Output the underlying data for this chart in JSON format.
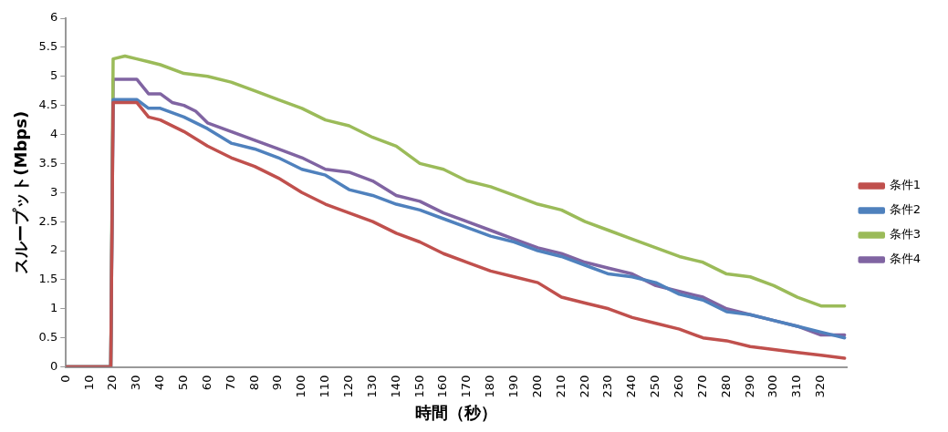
{
  "chart_data": {
    "type": "line",
    "xlabel": "時間（秒）",
    "ylabel": "スループット(Mbps)",
    "xlim": [
      0,
      331
    ],
    "xticks": [
      0,
      10,
      20,
      30,
      40,
      50,
      60,
      70,
      80,
      90,
      100,
      110,
      120,
      130,
      140,
      150,
      160,
      170,
      180,
      190,
      200,
      210,
      220,
      230,
      240,
      250,
      260,
      270,
      280,
      290,
      300,
      310,
      320
    ],
    "ylim": [
      0,
      6
    ],
    "yticks": [
      0,
      0.5,
      1,
      1.5,
      2,
      2.5,
      3,
      3.5,
      4,
      4.5,
      5,
      5.5,
      6
    ],
    "grid": false,
    "legend": "right",
    "marker": "none",
    "line_style": "solid",
    "series": [
      {
        "name": "条件4",
        "color": "#8064a2",
        "x": [
          0,
          19,
          20,
          30,
          35,
          40,
          45,
          50,
          55,
          60,
          70,
          80,
          90,
          100,
          110,
          120,
          130,
          140,
          150,
          160,
          170,
          180,
          190,
          200,
          210,
          220,
          230,
          240,
          250,
          260,
          270,
          280,
          290,
          300,
          310,
          320,
          330
        ],
        "values": [
          0,
          0,
          4.95,
          4.95,
          4.7,
          4.7,
          4.55,
          4.5,
          4.4,
          4.2,
          4.05,
          3.9,
          3.75,
          3.6,
          3.4,
          3.35,
          3.2,
          2.95,
          2.85,
          2.65,
          2.5,
          2.35,
          2.2,
          2.05,
          1.95,
          1.8,
          1.7,
          1.6,
          1.4,
          1.3,
          1.2,
          1.0,
          0.9,
          0.8,
          0.7,
          0.55,
          0.55
        ]
      },
      {
        "name": "条件3",
        "color": "#9bbb59",
        "x": [
          0,
          19,
          20,
          25,
          30,
          35,
          40,
          50,
          60,
          70,
          80,
          90,
          100,
          110,
          120,
          130,
          140,
          150,
          160,
          170,
          180,
          190,
          200,
          210,
          220,
          230,
          240,
          250,
          260,
          270,
          280,
          290,
          300,
          310,
          320,
          330
        ],
        "values": [
          0,
          0,
          5.3,
          5.35,
          5.3,
          5.25,
          5.2,
          5.05,
          5.0,
          4.9,
          4.75,
          4.6,
          4.45,
          4.25,
          4.15,
          3.95,
          3.8,
          3.5,
          3.4,
          3.2,
          3.1,
          2.95,
          2.8,
          2.7,
          2.5,
          2.35,
          2.2,
          2.05,
          1.9,
          1.8,
          1.6,
          1.55,
          1.4,
          1.2,
          1.05,
          1.05
        ]
      },
      {
        "name": "条件2",
        "color": "#4f81bd",
        "x": [
          0,
          19,
          20,
          30,
          35,
          40,
          50,
          60,
          70,
          80,
          90,
          100,
          110,
          120,
          130,
          140,
          150,
          160,
          170,
          180,
          190,
          200,
          210,
          220,
          230,
          240,
          250,
          260,
          270,
          280,
          290,
          300,
          310,
          320,
          330
        ],
        "values": [
          0,
          0,
          4.6,
          4.6,
          4.45,
          4.45,
          4.3,
          4.1,
          3.85,
          3.75,
          3.6,
          3.4,
          3.3,
          3.05,
          2.95,
          2.8,
          2.7,
          2.55,
          2.4,
          2.25,
          2.15,
          2.0,
          1.9,
          1.75,
          1.6,
          1.55,
          1.45,
          1.25,
          1.15,
          0.95,
          0.9,
          0.8,
          0.7,
          0.6,
          0.5
        ]
      },
      {
        "name": "条件1",
        "color": "#c0504d",
        "x": [
          0,
          19,
          20,
          30,
          35,
          40,
          50,
          60,
          70,
          80,
          90,
          100,
          110,
          120,
          130,
          140,
          150,
          160,
          170,
          180,
          190,
          200,
          210,
          220,
          230,
          240,
          250,
          260,
          270,
          280,
          290,
          300,
          310,
          320,
          330
        ],
        "values": [
          0,
          0,
          4.55,
          4.55,
          4.3,
          4.25,
          4.05,
          3.8,
          3.6,
          3.45,
          3.25,
          3.0,
          2.8,
          2.65,
          2.5,
          2.3,
          2.15,
          1.95,
          1.8,
          1.65,
          1.55,
          1.45,
          1.2,
          1.1,
          1.0,
          0.85,
          0.75,
          0.65,
          0.5,
          0.45,
          0.35,
          0.3,
          0.25,
          0.2,
          0.15
        ]
      }
    ]
  }
}
